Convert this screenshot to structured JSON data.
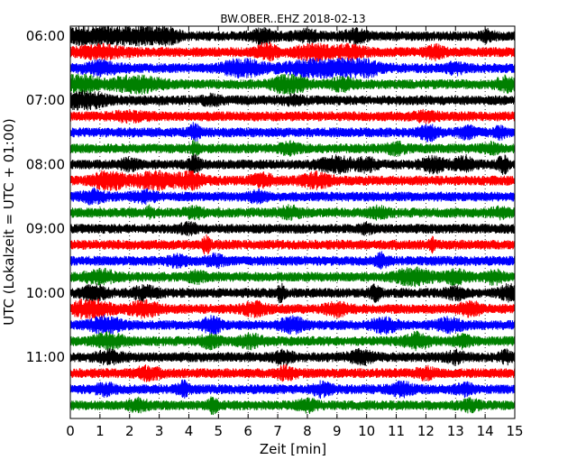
{
  "chart_data": {
    "type": "line",
    "title": "BW.OBER..EHZ 2018-02-13",
    "xlabel": "Zeit  [min]",
    "ylabel": "UTC (Lokalzeit = UTC + 01:00)",
    "xlim": [
      0,
      15
    ],
    "x_ticks": [
      "0",
      "1",
      "2",
      "3",
      "4",
      "5",
      "6",
      "7",
      "8",
      "9",
      "10",
      "11",
      "12",
      "13",
      "14",
      "15"
    ],
    "y_tick_labels": [
      "06:00",
      "07:00",
      "08:00",
      "09:00",
      "10:00",
      "11:00"
    ],
    "trace_interval_minutes": 15,
    "first_trace_time": "06:00",
    "grid": "vertical dotted at each minute",
    "colors": [
      "#000000",
      "#ff0000",
      "#0000ff",
      "#008000"
    ],
    "series": [
      {
        "start": "06:00",
        "color": "#000000",
        "events": [
          [
            0.9,
            0.95,
            1.0
          ],
          [
            2.2,
            0.9,
            0.7
          ],
          [
            3.2,
            0.6,
            0.5
          ],
          [
            6.5,
            0.5,
            0.4
          ],
          [
            8.0,
            0.4,
            0.5
          ],
          [
            9.6,
            0.5,
            0.4
          ],
          [
            14.1,
            0.4,
            0.2
          ]
        ]
      },
      {
        "start": "06:15",
        "color": "#ff0000",
        "events": [
          [
            1.0,
            0.5,
            0.8
          ],
          [
            6.6,
            0.9,
            0.3
          ],
          [
            8.2,
            0.6,
            0.6
          ],
          [
            9.4,
            0.5,
            0.5
          ],
          [
            12.3,
            0.5,
            0.3
          ]
        ]
      },
      {
        "start": "06:30",
        "color": "#0000ff",
        "events": [
          [
            1.0,
            0.5,
            0.6
          ],
          [
            5.8,
            0.8,
            0.6
          ],
          [
            8.8,
            1.0,
            1.3
          ],
          [
            9.8,
            0.8,
            0.4
          ],
          [
            13.0,
            0.4,
            0.3
          ]
        ]
      },
      {
        "start": "06:45",
        "color": "#008000",
        "events": [
          [
            0.3,
            0.9,
            0.6
          ],
          [
            2.2,
            0.7,
            0.8
          ],
          [
            7.4,
            1.0,
            0.5
          ],
          [
            9.2,
            0.5,
            0.4
          ],
          [
            14.7,
            0.6,
            0.3
          ]
        ]
      },
      {
        "start": "07:00",
        "color": "#000000",
        "events": [
          [
            0.5,
            0.9,
            0.6
          ],
          [
            4.8,
            0.35,
            0.3
          ],
          [
            7.5,
            0.3,
            0.3
          ]
        ]
      },
      {
        "start": "07:15",
        "color": "#ff0000",
        "events": [
          [
            2.0,
            0.3,
            0.6
          ],
          [
            12.0,
            0.3,
            0.4
          ]
        ]
      },
      {
        "start": "07:30",
        "color": "#0000ff",
        "events": [
          [
            4.2,
            0.9,
            0.15
          ],
          [
            12.1,
            0.6,
            0.3
          ],
          [
            13.4,
            0.45,
            0.3
          ],
          [
            14.5,
            0.4,
            0.2
          ]
        ]
      },
      {
        "start": "07:45",
        "color": "#008000",
        "events": [
          [
            4.2,
            0.7,
            0.12
          ],
          [
            7.4,
            0.45,
            0.3
          ],
          [
            11.0,
            0.4,
            0.3
          ],
          [
            14.2,
            0.35,
            0.3
          ]
        ]
      },
      {
        "start": "08:00",
        "color": "#000000",
        "events": [
          [
            2.0,
            0.45,
            0.3
          ],
          [
            4.2,
            0.7,
            0.2
          ],
          [
            9.0,
            0.6,
            0.6
          ],
          [
            10.0,
            0.5,
            0.3
          ],
          [
            12.3,
            0.6,
            0.4
          ],
          [
            13.3,
            0.65,
            0.3
          ],
          [
            14.6,
            0.9,
            0.15
          ]
        ]
      },
      {
        "start": "08:15",
        "color": "#ff0000",
        "events": [
          [
            1.3,
            0.9,
            0.5
          ],
          [
            2.8,
            0.75,
            0.6
          ],
          [
            4.0,
            0.65,
            0.5
          ],
          [
            6.5,
            0.5,
            0.4
          ],
          [
            8.3,
            0.6,
            0.5
          ]
        ]
      },
      {
        "start": "08:30",
        "color": "#0000ff",
        "events": [
          [
            0.8,
            0.5,
            0.4
          ],
          [
            2.5,
            0.4,
            0.4
          ],
          [
            6.3,
            0.4,
            0.3
          ]
        ]
      },
      {
        "start": "08:45",
        "color": "#008000",
        "events": [
          [
            2.7,
            0.5,
            0.12
          ],
          [
            4.2,
            0.4,
            0.3
          ],
          [
            7.4,
            0.45,
            0.35
          ],
          [
            10.4,
            0.4,
            0.3
          ],
          [
            14.5,
            0.35,
            0.3
          ]
        ]
      },
      {
        "start": "09:00",
        "color": "#000000",
        "events": [
          [
            4.0,
            0.35,
            0.3
          ],
          [
            10.0,
            0.3,
            0.2
          ]
        ]
      },
      {
        "start": "09:15",
        "color": "#ff0000",
        "events": [
          [
            4.6,
            0.9,
            0.12
          ],
          [
            12.2,
            0.5,
            0.1
          ]
        ]
      },
      {
        "start": "09:30",
        "color": "#0000ff",
        "events": [
          [
            3.6,
            0.4,
            0.3
          ],
          [
            4.9,
            0.45,
            0.3
          ],
          [
            10.5,
            0.55,
            0.2
          ]
        ]
      },
      {
        "start": "09:45",
        "color": "#008000",
        "events": [
          [
            1.0,
            0.55,
            0.5
          ],
          [
            4.3,
            0.4,
            0.3
          ],
          [
            11.6,
            0.7,
            0.6
          ],
          [
            13.0,
            0.5,
            0.4
          ],
          [
            14.3,
            0.5,
            0.3
          ]
        ]
      },
      {
        "start": "10:00",
        "color": "#000000",
        "events": [
          [
            0.8,
            0.6,
            0.4
          ],
          [
            2.5,
            0.5,
            0.4
          ],
          [
            7.1,
            0.8,
            0.12
          ],
          [
            10.3,
            0.8,
            0.15
          ],
          [
            13.0,
            0.5,
            0.3
          ],
          [
            14.8,
            0.6,
            0.3
          ]
        ]
      },
      {
        "start": "10:15",
        "color": "#ff0000",
        "events": [
          [
            0.7,
            0.9,
            0.6
          ],
          [
            2.5,
            0.6,
            0.5
          ],
          [
            6.2,
            0.5,
            0.4
          ],
          [
            9.0,
            0.5,
            0.4
          ],
          [
            13.5,
            0.5,
            0.4
          ]
        ]
      },
      {
        "start": "10:30",
        "color": "#0000ff",
        "events": [
          [
            1.2,
            0.7,
            0.5
          ],
          [
            4.8,
            0.7,
            0.3
          ],
          [
            7.5,
            0.6,
            0.4
          ],
          [
            10.6,
            0.6,
            0.4
          ],
          [
            12.8,
            0.55,
            0.4
          ]
        ]
      },
      {
        "start": "10:45",
        "color": "#008000",
        "events": [
          [
            1.3,
            0.6,
            0.5
          ],
          [
            4.7,
            0.5,
            0.3
          ],
          [
            6.1,
            0.5,
            0.4
          ],
          [
            11.7,
            0.7,
            0.4
          ],
          [
            13.2,
            0.45,
            0.3
          ]
        ]
      },
      {
        "start": "11:00",
        "color": "#000000",
        "events": [
          [
            1.3,
            0.5,
            0.4
          ],
          [
            7.2,
            0.5,
            0.3
          ],
          [
            9.8,
            0.5,
            0.4
          ],
          [
            13.0,
            0.45,
            0.3
          ],
          [
            14.7,
            0.5,
            0.2
          ]
        ]
      },
      {
        "start": "11:15",
        "color": "#ff0000",
        "events": [
          [
            2.6,
            0.5,
            0.4
          ],
          [
            7.3,
            0.55,
            0.3
          ],
          [
            12.0,
            0.45,
            0.3
          ]
        ]
      },
      {
        "start": "11:30",
        "color": "#0000ff",
        "events": [
          [
            1.2,
            0.5,
            0.3
          ],
          [
            3.8,
            0.65,
            0.2
          ],
          [
            8.5,
            0.55,
            0.3
          ],
          [
            11.2,
            0.5,
            0.4
          ],
          [
            13.3,
            0.45,
            0.3
          ]
        ]
      },
      {
        "start": "11:45",
        "color": "#008000",
        "events": [
          [
            2.3,
            0.5,
            0.3
          ],
          [
            4.8,
            0.7,
            0.15
          ],
          [
            8.0,
            0.45,
            0.3
          ],
          [
            13.5,
            0.4,
            0.3
          ]
        ]
      }
    ]
  }
}
